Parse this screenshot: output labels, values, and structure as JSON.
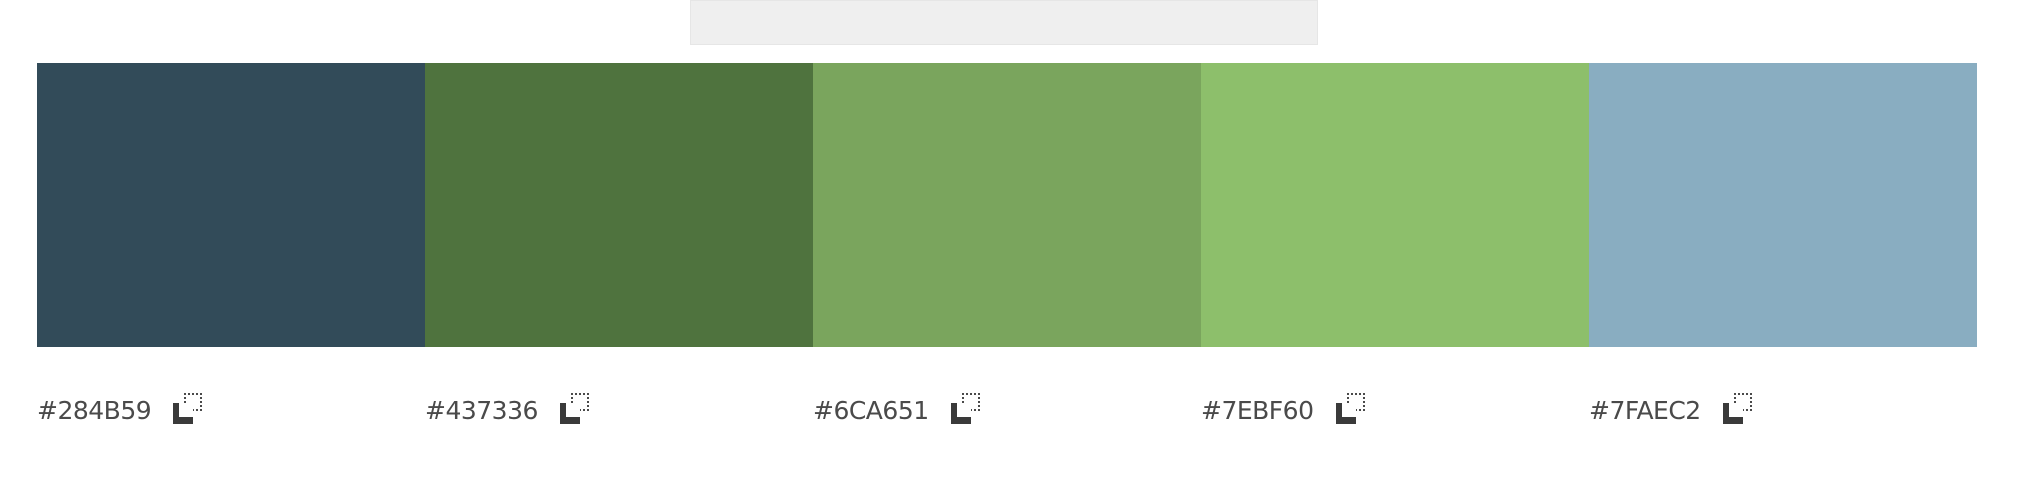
{
  "palette": {
    "colors": [
      {
        "hex_label": "#284B59",
        "display_color": "#324B59",
        "copy_icon": "copy-icon"
      },
      {
        "hex_label": "#437336",
        "display_color": "#4F733E",
        "copy_icon": "copy-icon"
      },
      {
        "hex_label": "#6CA651",
        "display_color": "#7AA55D",
        "copy_icon": "copy-icon"
      },
      {
        "hex_label": "#7EBF60",
        "display_color": "#8DBF6B",
        "copy_icon": "copy-icon"
      },
      {
        "hex_label": "#7FAEC2",
        "display_color": "#89ADC1",
        "copy_icon": "copy-icon"
      }
    ]
  },
  "top_bar_color": "#EFEFEF"
}
